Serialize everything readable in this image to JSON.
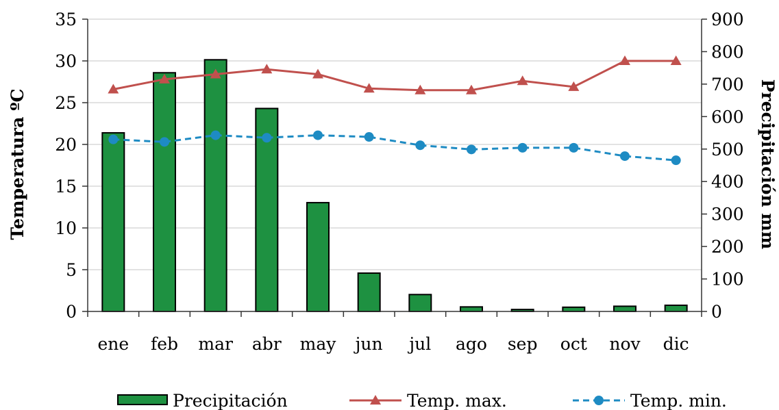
{
  "chart_data": {
    "type": "bar+line",
    "categories": [
      "ene",
      "feb",
      "mar",
      "abr",
      "may",
      "jun",
      "jul",
      "ago",
      "sep",
      "oct",
      "nov",
      "dic"
    ],
    "y_left": {
      "label": "Temperatura ºC",
      "range": [
        0,
        35
      ],
      "ticks": [
        "0",
        "5",
        "10",
        "15",
        "20",
        "25",
        "30",
        "35"
      ]
    },
    "y_right": {
      "label": "Precipitación mm",
      "range": [
        0,
        900
      ],
      "ticks": [
        "0",
        "100",
        "200",
        "300",
        "400",
        "500",
        "600",
        "700",
        "800",
        "900"
      ]
    },
    "series": [
      {
        "name": "Precipitación",
        "kind": "bar",
        "axis": "right",
        "color": "#1e9141",
        "values": [
          550,
          735,
          775,
          625,
          335,
          118,
          52,
          14,
          6,
          13,
          16,
          19
        ]
      },
      {
        "name": "Temp. max.",
        "kind": "line",
        "axis": "left",
        "color": "#c0504d",
        "marker": "triangle",
        "values": [
          26.6,
          27.8,
          28.4,
          29.0,
          28.4,
          26.7,
          26.5,
          26.5,
          27.6,
          26.9,
          30.0,
          30.0
        ]
      },
      {
        "name": "Temp. min.",
        "kind": "line",
        "axis": "left",
        "color": "#1e8bc3",
        "marker": "circle",
        "dashed": true,
        "values": [
          20.6,
          20.3,
          21.1,
          20.8,
          21.1,
          20.9,
          19.9,
          19.4,
          19.6,
          19.6,
          18.6,
          18.1
        ]
      }
    ],
    "grid": "horizontal",
    "legend": "bottom"
  }
}
